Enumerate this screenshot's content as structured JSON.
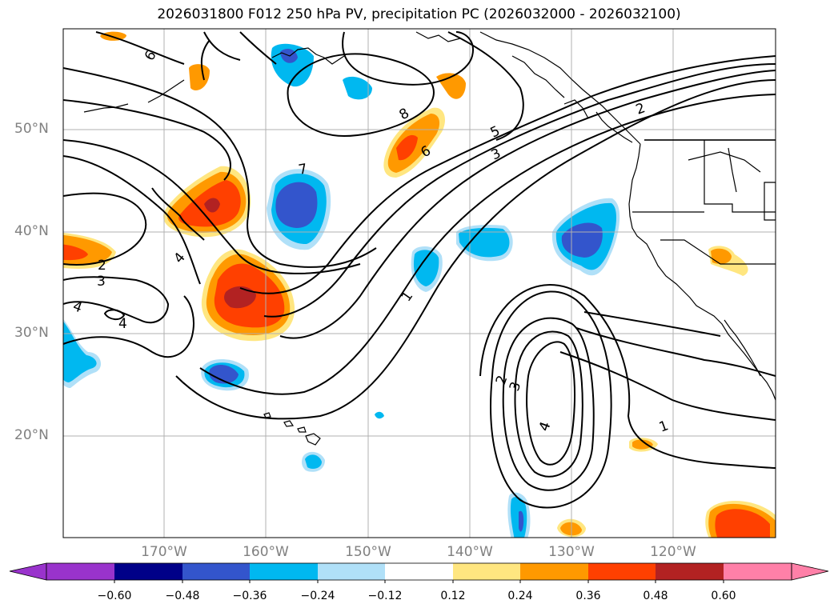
{
  "title": "2026031800 F012 250 hPa PV, precipitation PC (2026032000 - 2026032100)",
  "lat_labels": [
    "50°N",
    "40°N",
    "30°N",
    "20°N"
  ],
  "lon_labels": [
    "170°W",
    "160°W",
    "150°W",
    "140°W",
    "130°W",
    "120°W"
  ],
  "colorbar": {
    "ticks": [
      "−0.60",
      "−0.48",
      "−0.36",
      "−0.24",
      "−0.12",
      "0.12",
      "0.24",
      "0.36",
      "0.48",
      "0.60"
    ],
    "colors": [
      "#9933cc",
      "#000088",
      "#3355cc",
      "#00b8f0",
      "#b0e0f8",
      "#ffffff",
      "#ffe680",
      "#ff9900",
      "#ff4000",
      "#b22222",
      "#ff80a8"
    ]
  },
  "contour_labels": [
    "8",
    "6",
    "6",
    "5",
    "3",
    "2",
    "7",
    "4",
    "4",
    "4",
    "2",
    "3",
    "4",
    "1",
    "1",
    "2",
    "3",
    "4"
  ]
}
